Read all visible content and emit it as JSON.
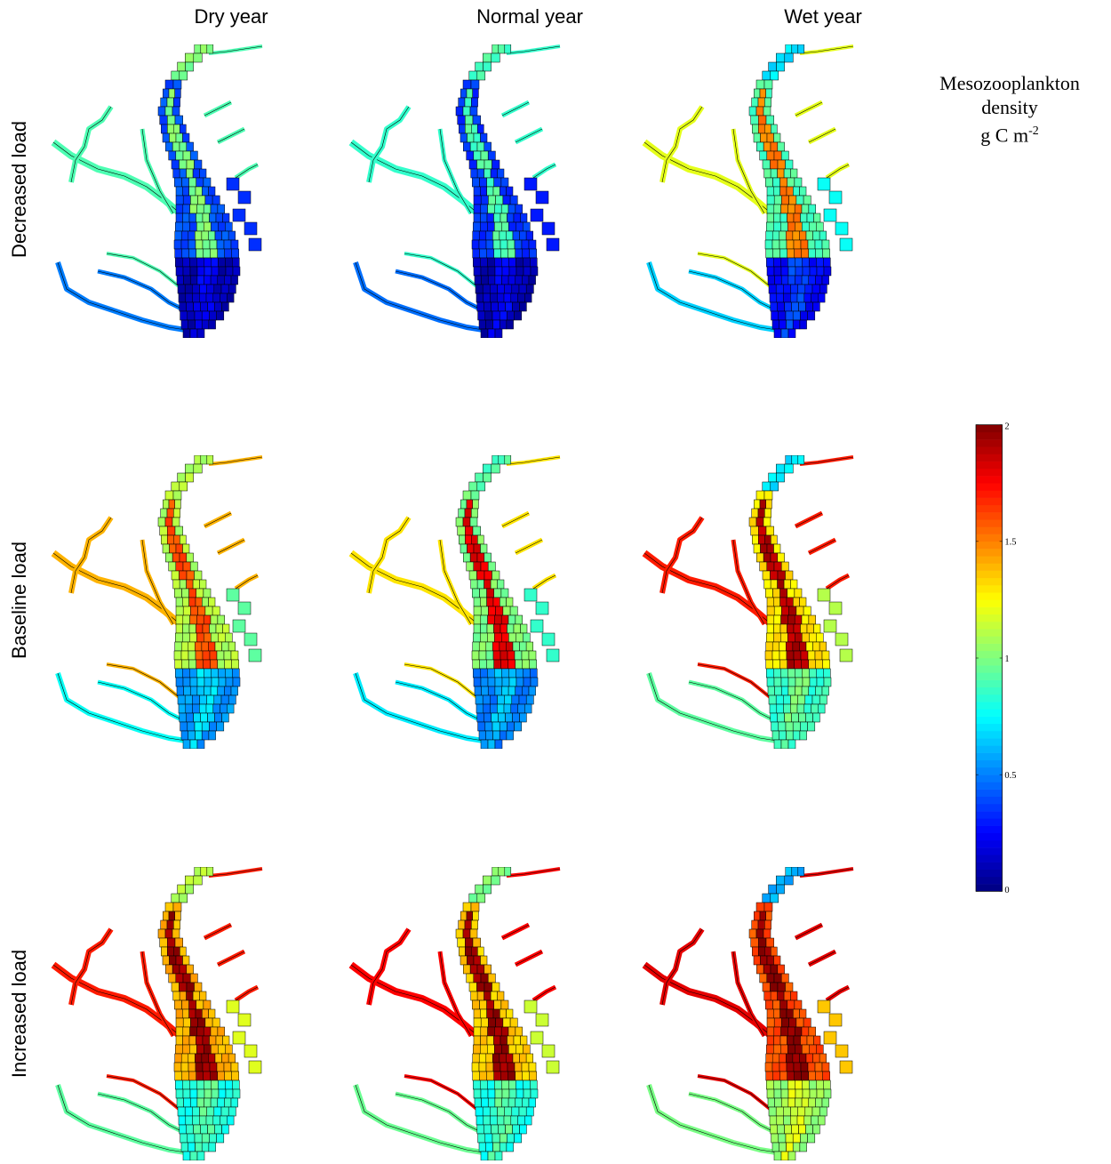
{
  "columns": [
    "Dry year",
    "Normal year",
    "Wet year"
  ],
  "rows": [
    "Decreased load",
    "Baseline load",
    "Increased load"
  ],
  "colorbar": {
    "title_line1": "Mesozooplankton",
    "title_line2": "density",
    "unit_base": "g C m",
    "unit_exp": "-2",
    "min": 0,
    "max": 2,
    "ticks": [
      {
        "value": 0,
        "label": "0"
      },
      {
        "value": 0.5,
        "label": "0.5"
      },
      {
        "value": 1,
        "label": "1"
      },
      {
        "value": 1.5,
        "label": "1.5"
      },
      {
        "value": 2,
        "label": "2"
      }
    ],
    "colormap": "jet"
  },
  "chart_data": {
    "type": "heatmap",
    "title": "",
    "series_description": "Mesozooplankton density by scenario",
    "panels": [
      {
        "row": "Decreased load",
        "column": "Dry year",
        "upper_bay": 1.0,
        "mid_channel": 1.0,
        "mid_flanks": 0.4,
        "lower_bay": 0.15,
        "tributaries": 0.9
      },
      {
        "row": "Decreased load",
        "column": "Normal year",
        "upper_bay": 0.9,
        "mid_channel": 0.9,
        "mid_flanks": 0.35,
        "lower_bay": 0.15,
        "tributaries": 0.85
      },
      {
        "row": "Decreased load",
        "column": "Wet year",
        "upper_bay": 0.7,
        "mid_channel": 1.5,
        "mid_flanks": 0.9,
        "lower_bay": 0.3,
        "tributaries": 1.2
      },
      {
        "row": "Baseline load",
        "column": "Dry year",
        "upper_bay": 1.1,
        "mid_channel": 1.6,
        "mid_flanks": 1.1,
        "lower_bay": 0.6,
        "tributaries": 1.4
      },
      {
        "row": "Baseline load",
        "column": "Normal year",
        "upper_bay": 0.9,
        "mid_channel": 1.8,
        "mid_flanks": 1.0,
        "lower_bay": 0.55,
        "tributaries": 1.3
      },
      {
        "row": "Baseline load",
        "column": "Wet year",
        "upper_bay": 0.7,
        "mid_channel": 1.9,
        "mid_flanks": 1.3,
        "lower_bay": 0.9,
        "tributaries": 1.7
      },
      {
        "row": "Increased load",
        "column": "Dry year",
        "upper_bay": 1.1,
        "mid_channel": 1.95,
        "mid_flanks": 1.4,
        "lower_bay": 0.85,
        "tributaries": 1.7
      },
      {
        "row": "Increased load",
        "column": "Normal year",
        "upper_bay": 1.0,
        "mid_channel": 1.95,
        "mid_flanks": 1.35,
        "lower_bay": 0.85,
        "tributaries": 1.75
      },
      {
        "row": "Increased load",
        "column": "Wet year",
        "upper_bay": 0.6,
        "mid_channel": 1.98,
        "mid_flanks": 1.6,
        "lower_bay": 1.1,
        "tributaries": 1.8
      }
    ]
  }
}
